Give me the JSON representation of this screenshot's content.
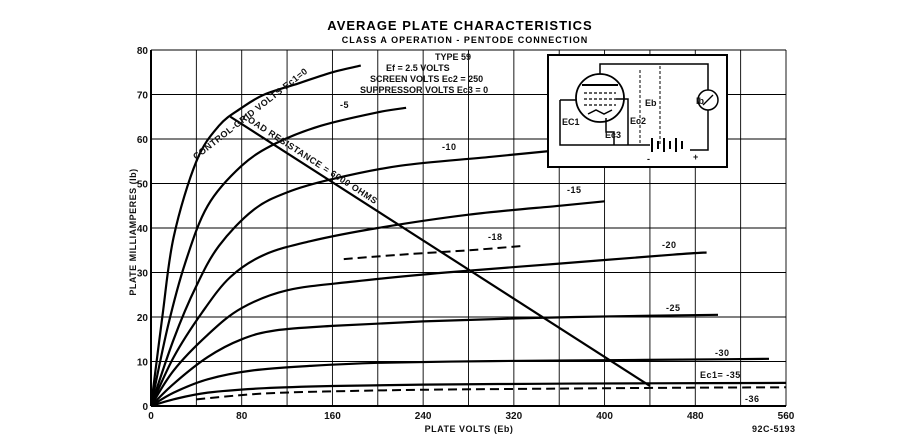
{
  "chart_data": {
    "type": "line",
    "title": "AVERAGE PLATE CHARACTERISTICS",
    "subtitle": "CLASS A OPERATION - PENTODE CONNECTION",
    "xlabel": "PLATE VOLTS (Eb)",
    "ylabel": "PLATE MILLIAMPERES (Ib)",
    "xlim": [
      0,
      560
    ],
    "ylim": [
      0,
      80
    ],
    "x_ticks": [
      0,
      80,
      160,
      240,
      320,
      400,
      480,
      560
    ],
    "y_ticks": [
      0,
      10,
      20,
      30,
      40,
      50,
      60,
      70,
      80
    ],
    "grid": true,
    "family_label": "CONTROL-GRID VOLTS Ec1=0",
    "series": [
      {
        "name": "0",
        "style": "solid",
        "x": [
          0,
          10,
          20,
          40,
          60,
          80,
          100,
          130,
          160,
          185
        ],
        "y": [
          0,
          20,
          38,
          55,
          63,
          67,
          70,
          72.5,
          75,
          76.5
        ]
      },
      {
        "name": "-5",
        "style": "solid",
        "x": [
          0,
          15,
          30,
          50,
          80,
          110,
          150,
          200,
          225
        ],
        "y": [
          0,
          18,
          32,
          45,
          54,
          59,
          63,
          66,
          67
        ]
      },
      {
        "name": "-10",
        "style": "solid",
        "x": [
          0,
          20,
          40,
          60,
          90,
          120,
          160,
          220,
          300,
          380
        ],
        "y": [
          0,
          15,
          27,
          36,
          44,
          48,
          51,
          54,
          56,
          58
        ]
      },
      {
        "name": "-15",
        "style": "solid",
        "x": [
          0,
          20,
          45,
          70,
          100,
          140,
          200,
          280,
          360,
          400
        ],
        "y": [
          0,
          11,
          21,
          29,
          34,
          37,
          40,
          43,
          45,
          46
        ]
      },
      {
        "name": "-18",
        "style": "dashed",
        "x": [
          170,
          220,
          280,
          330
        ],
        "y": [
          33,
          34,
          35,
          36
        ]
      },
      {
        "name": "-20",
        "style": "solid",
        "x": [
          0,
          20,
          50,
          80,
          120,
          180,
          260,
          360,
          460,
          490
        ],
        "y": [
          0,
          8,
          16,
          22,
          26,
          28,
          30,
          32,
          34,
          34.5
        ]
      },
      {
        "name": "-25",
        "style": "solid",
        "x": [
          0,
          20,
          50,
          80,
          110,
          160,
          240,
          340,
          440,
          500
        ],
        "y": [
          0,
          5,
          11,
          15,
          17,
          18,
          19,
          19.8,
          20.3,
          20.5
        ]
      },
      {
        "name": "-30",
        "style": "solid",
        "x": [
          0,
          20,
          50,
          90,
          140,
          200,
          300,
          400,
          500,
          545
        ],
        "y": [
          0,
          3,
          6,
          8,
          9,
          9.7,
          10.1,
          10.3,
          10.5,
          10.6
        ]
      },
      {
        "name": "-35",
        "style": "solid",
        "x": [
          0,
          20,
          50,
          100,
          160,
          240,
          340,
          440,
          560
        ],
        "y": [
          0,
          1.5,
          3,
          4,
          4.5,
          4.8,
          5,
          5.1,
          5.2
        ]
      },
      {
        "name": "-36",
        "style": "dashed",
        "x": [
          40,
          100,
          180,
          260,
          360,
          460,
          560
        ],
        "y": [
          1.5,
          2.8,
          3.4,
          3.7,
          3.9,
          4.1,
          4.2
        ]
      }
    ],
    "load_line": {
      "label": "LOAD RESISTANCE = 6000 OHMS",
      "x": [
        70,
        440
      ],
      "y": [
        65,
        4.5
      ]
    },
    "curve_labels": {
      "c5": "-5",
      "c10": "-10",
      "c15": "-15",
      "c18": "-18",
      "c20": "-20",
      "c25": "-25",
      "c30": "-30",
      "c35": "Ec1= -35",
      "c36": "-36"
    },
    "info_box": {
      "type": "TYPE 59",
      "filament": "Ef = 2.5 VOLTS",
      "screen": "SCREEN VOLTS Ec2 = 250",
      "suppressor": "SUPPRESSOR VOLTS Ec3 = 0"
    },
    "schematic_labels": {
      "eb": "Eb",
      "ib": "Ib",
      "ec1": "EC1",
      "ec2": "Ec2",
      "ec3": "Ec3",
      "minus": "-",
      "plus": "+"
    },
    "figure_code": "92C-5193"
  }
}
